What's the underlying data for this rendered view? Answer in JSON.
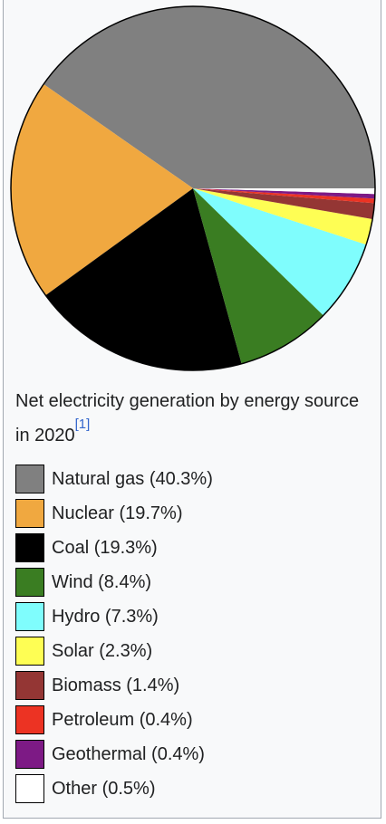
{
  "chart_data": {
    "type": "pie",
    "title": "Net electricity generation by energy source in 2020",
    "reference": "[1]",
    "categories": [
      "Natural gas",
      "Nuclear",
      "Coal",
      "Wind",
      "Hydro",
      "Solar",
      "Biomass",
      "Petroleum",
      "Geothermal",
      "Other"
    ],
    "values": [
      40.3,
      19.7,
      19.3,
      8.4,
      7.3,
      2.3,
      1.4,
      0.4,
      0.4,
      0.5
    ],
    "unit": "%",
    "colors": [
      "#808080",
      "#f0a840",
      "#000000",
      "#3a7d22",
      "#7ffdfd",
      "#fefe54",
      "#943634",
      "#ec3323",
      "#7d1a85",
      "#ffffff"
    ],
    "legend_labels": [
      "Natural gas (40.3%)",
      "Nuclear (19.7%)",
      "Coal (19.3%)",
      "Wind (8.4%)",
      "Hydro (7.3%)",
      "Solar (2.3%)",
      "Biomass (1.4%)",
      "Petroleum (0.4%)",
      "Geothermal (0.4%)",
      "Other (0.5%)"
    ],
    "legend_placement": "bottom"
  }
}
